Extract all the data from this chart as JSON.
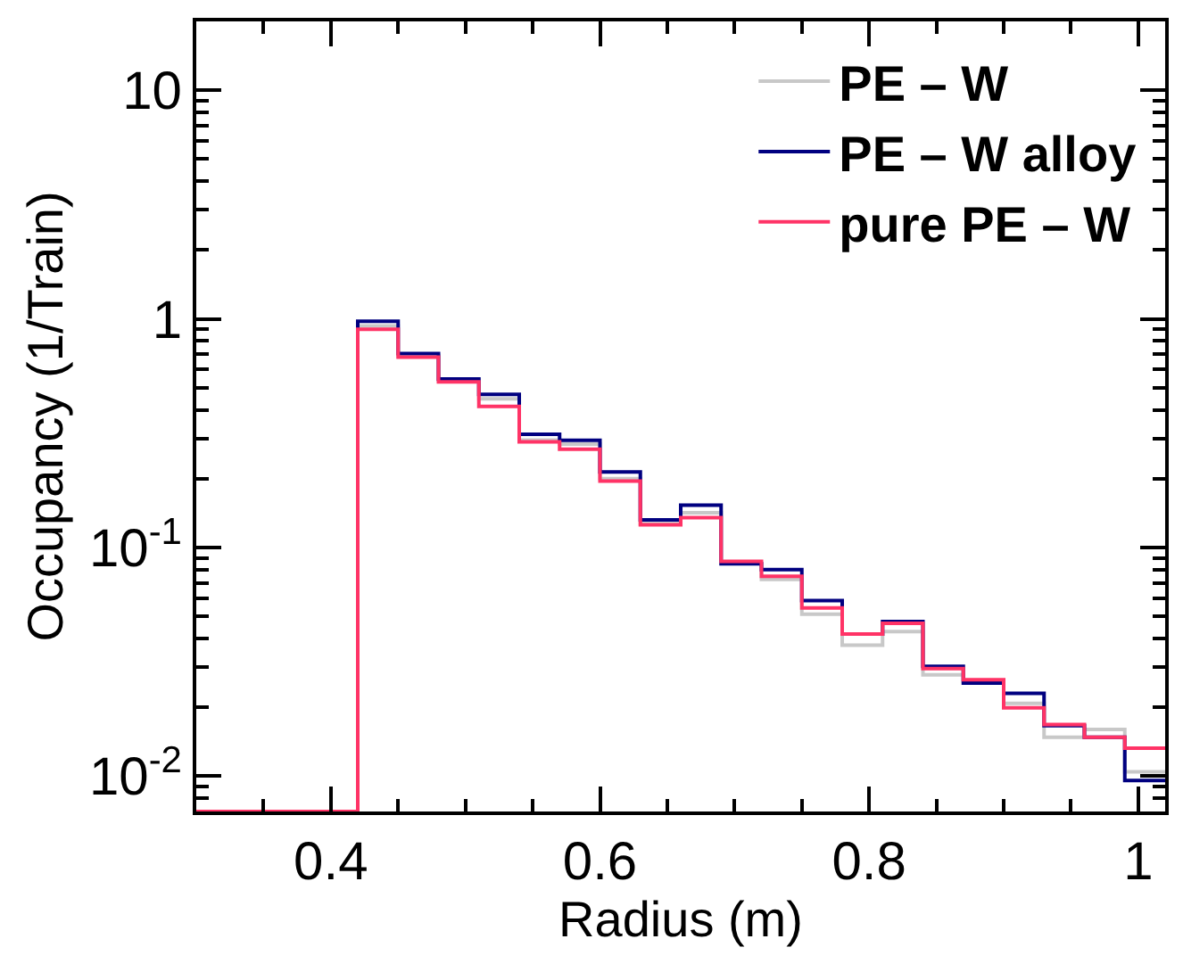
{
  "chart_data": {
    "type": "histogram",
    "xlabel": "Radius (m)",
    "ylabel": "Occupancy (1/Train)",
    "bins": [
      0.3,
      0.33,
      0.36,
      0.39,
      0.42,
      0.45,
      0.48,
      0.51,
      0.54,
      0.57,
      0.6,
      0.63,
      0.66,
      0.69,
      0.72,
      0.75,
      0.78,
      0.81,
      0.84,
      0.87,
      0.9,
      0.93,
      0.96,
      0.99,
      1.02
    ],
    "series": [
      {
        "name": "PE – W",
        "color": "#c8c8c8",
        "values": [
          null,
          null,
          null,
          null,
          0.93,
          0.69,
          0.54,
          0.447,
          0.295,
          0.283,
          0.2,
          0.127,
          0.142,
          0.085,
          0.0725,
          0.0511,
          0.0374,
          0.0429,
          0.0277,
          0.026,
          0.0208,
          0.0148,
          0.016,
          0.01045
        ]
      },
      {
        "name": "PE – W alloy",
        "color": "#000080",
        "values": [
          null,
          null,
          null,
          null,
          0.975,
          0.705,
          0.545,
          0.467,
          0.313,
          0.294,
          0.214,
          0.132,
          0.153,
          0.0848,
          0.08,
          0.0586,
          0.0418,
          0.0474,
          0.0302,
          0.0255,
          0.023,
          0.0166,
          0.0148,
          0.00957
        ]
      },
      {
        "name": "pure PE – W",
        "color": "#ff3366",
        "values": [
          null,
          null,
          null,
          null,
          0.9,
          0.68,
          0.53,
          0.414,
          0.29,
          0.269,
          0.195,
          0.1256,
          0.135,
          0.0869,
          0.0748,
          0.0544,
          0.0418,
          0.0466,
          0.0295,
          0.0264,
          0.0199,
          0.0168,
          0.0148,
          0.01325
        ]
      }
    ],
    "xlim": [
      0.3,
      1.02
    ],
    "xticks": [
      0.4,
      0.6,
      0.8,
      {
        "value": 1.0,
        "label": "1"
      }
    ],
    "ylim": [
      0.007,
      20
    ],
    "yticks": [
      {
        "value": 0.01,
        "label": "10$^{-2}$"
      },
      {
        "value": 0.1,
        "label": "10$^{-1}$"
      },
      1,
      10
    ],
    "log": "y",
    "legend": "top right",
    "line_style": "solid",
    "marker": "none"
  }
}
